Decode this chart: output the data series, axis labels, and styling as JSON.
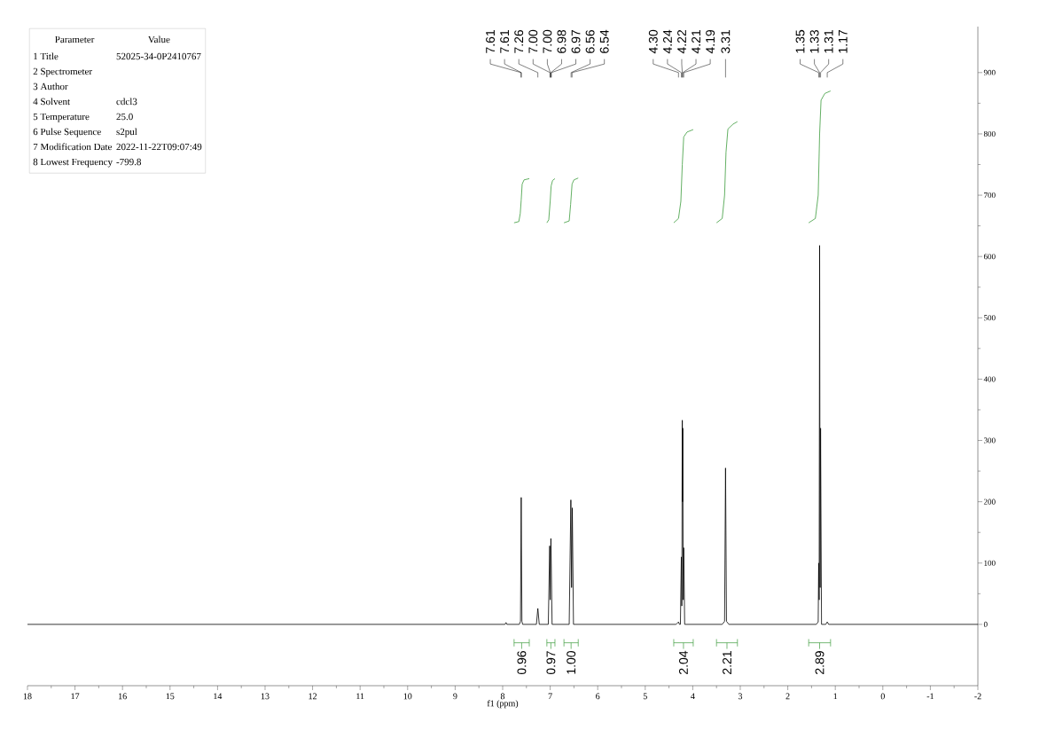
{
  "chart_data": [
    {
      "type": "other",
      "annotations": [
        "Parameter",
        "Value"
      ],
      "categories": [
        "1 Title",
        "2 Spectrometer",
        "3 Author",
        "4 Solvent",
        "5 Temperature",
        "6 Pulse Sequence",
        "7 Modification Date",
        "8 Lowest Frequency"
      ],
      "value_labels": [
        "52025-34-0P2410767",
        null,
        null,
        "cdcl3",
        "25.0",
        "s2pul",
        "2022-11-22T09:07:49",
        "-799.8"
      ]
    },
    {
      "type": "line",
      "xlabel": "f1 (ppm)",
      "xlim": [
        18,
        -2
      ],
      "xticks": [
        18,
        17,
        16,
        15,
        14,
        13,
        12,
        11,
        10,
        9,
        8,
        7,
        6,
        5,
        4,
        3,
        2,
        1,
        0,
        -1,
        -2
      ],
      "ylim": [
        -100,
        975
      ],
      "yticks": [
        0,
        100,
        200,
        300,
        400,
        500,
        600,
        700,
        800,
        900
      ],
      "series": [
        {
          "color": "#000000",
          "x": [
            18,
            8.2,
            7.95,
            7.93,
            7.91,
            7.65,
            7.625,
            7.61,
            7.595,
            7.58,
            7.29,
            7.26,
            7.23,
            7.04,
            7.01,
            7.0,
            6.985,
            6.96,
            6.6,
            6.565,
            6.55,
            6.535,
            6.51,
            4.35,
            4.3,
            4.28,
            4.26,
            4.24,
            4.23,
            4.22,
            4.215,
            4.21,
            4.2,
            4.19,
            4.17,
            3.38,
            3.33,
            3.31,
            3.29,
            3.24,
            1.4,
            1.36,
            1.35,
            1.34,
            1.33,
            1.32,
            1.31,
            1.29,
            1.2,
            1.17,
            1.14,
            -2
          ],
          "values": [
            0,
            0,
            0,
            3,
            0,
            0,
            5,
            207,
            5,
            0,
            0,
            26,
            0,
            0,
            128,
            40,
            140,
            0,
            0,
            203,
            60,
            190,
            0,
            0,
            4,
            0,
            0,
            110,
            30,
            333,
            200,
            320,
            40,
            125,
            0,
            0,
            5,
            255,
            5,
            0,
            0,
            4,
            100,
            40,
            618,
            60,
            320,
            0,
            0,
            4,
            0,
            0
          ]
        },
        {
          "color": "#3c9c3c",
          "x": [
            7.76,
            7.66,
            7.63,
            7.61,
            7.59,
            7.55,
            7.44
          ],
          "values": [
            655,
            657,
            670,
            692,
            718,
            725,
            727
          ]
        },
        {
          "color": "#3c9c3c",
          "x": [
            7.07,
            7.03,
            7.0,
            6.98,
            6.95,
            6.9
          ],
          "values": [
            655,
            660,
            690,
            715,
            724,
            727
          ]
        },
        {
          "color": "#3c9c3c",
          "x": [
            6.71,
            6.6,
            6.57,
            6.54,
            6.5,
            6.41
          ],
          "values": [
            655,
            658,
            685,
            718,
            725,
            728
          ]
        },
        {
          "color": "#3c9c3c",
          "x": [
            4.4,
            4.3,
            4.25,
            4.22,
            4.19,
            4.12,
            3.99
          ],
          "values": [
            655,
            662,
            690,
            750,
            795,
            803,
            807
          ]
        },
        {
          "color": "#3c9c3c",
          "x": [
            3.5,
            3.38,
            3.33,
            3.3,
            3.26,
            3.15,
            3.06
          ],
          "values": [
            655,
            662,
            700,
            770,
            808,
            816,
            820
          ]
        },
        {
          "color": "#3c9c3c",
          "x": [
            1.56,
            1.42,
            1.36,
            1.33,
            1.3,
            1.22,
            1.1
          ],
          "values": [
            655,
            662,
            700,
            800,
            855,
            866,
            870
          ]
        }
      ],
      "annotations": [
        "0.96",
        "0.97",
        "1.00",
        "2.04",
        "2.21",
        "2.89",
        {
          "text": "7.61",
          "x": 7.612
        },
        {
          "text": "7.61",
          "x": 7.608
        },
        {
          "text": "7.26",
          "x": 7.26
        },
        {
          "text": "7.00",
          "x": 7.003
        },
        {
          "text": "7.00",
          "x": 6.997
        },
        {
          "text": "6.98",
          "x": 6.985
        },
        {
          "text": "6.97",
          "x": 6.975
        },
        {
          "text": "6.56",
          "x": 6.56
        },
        {
          "text": "6.54",
          "x": 6.54
        },
        {
          "text": "4.30",
          "x": 4.3
        },
        {
          "text": "4.24",
          "x": 4.24
        },
        {
          "text": "4.22",
          "x": 4.22
        },
        {
          "text": "4.21",
          "x": 4.21
        },
        {
          "text": "4.19",
          "x": 4.19
        },
        {
          "text": "3.31",
          "x": 3.31
        },
        {
          "text": "1.35",
          "x": 1.35
        },
        {
          "text": "1.33",
          "x": 1.33
        },
        {
          "text": "1.31",
          "x": 1.31
        },
        {
          "text": "1.17",
          "x": 1.17
        }
      ]
    }
  ]
}
